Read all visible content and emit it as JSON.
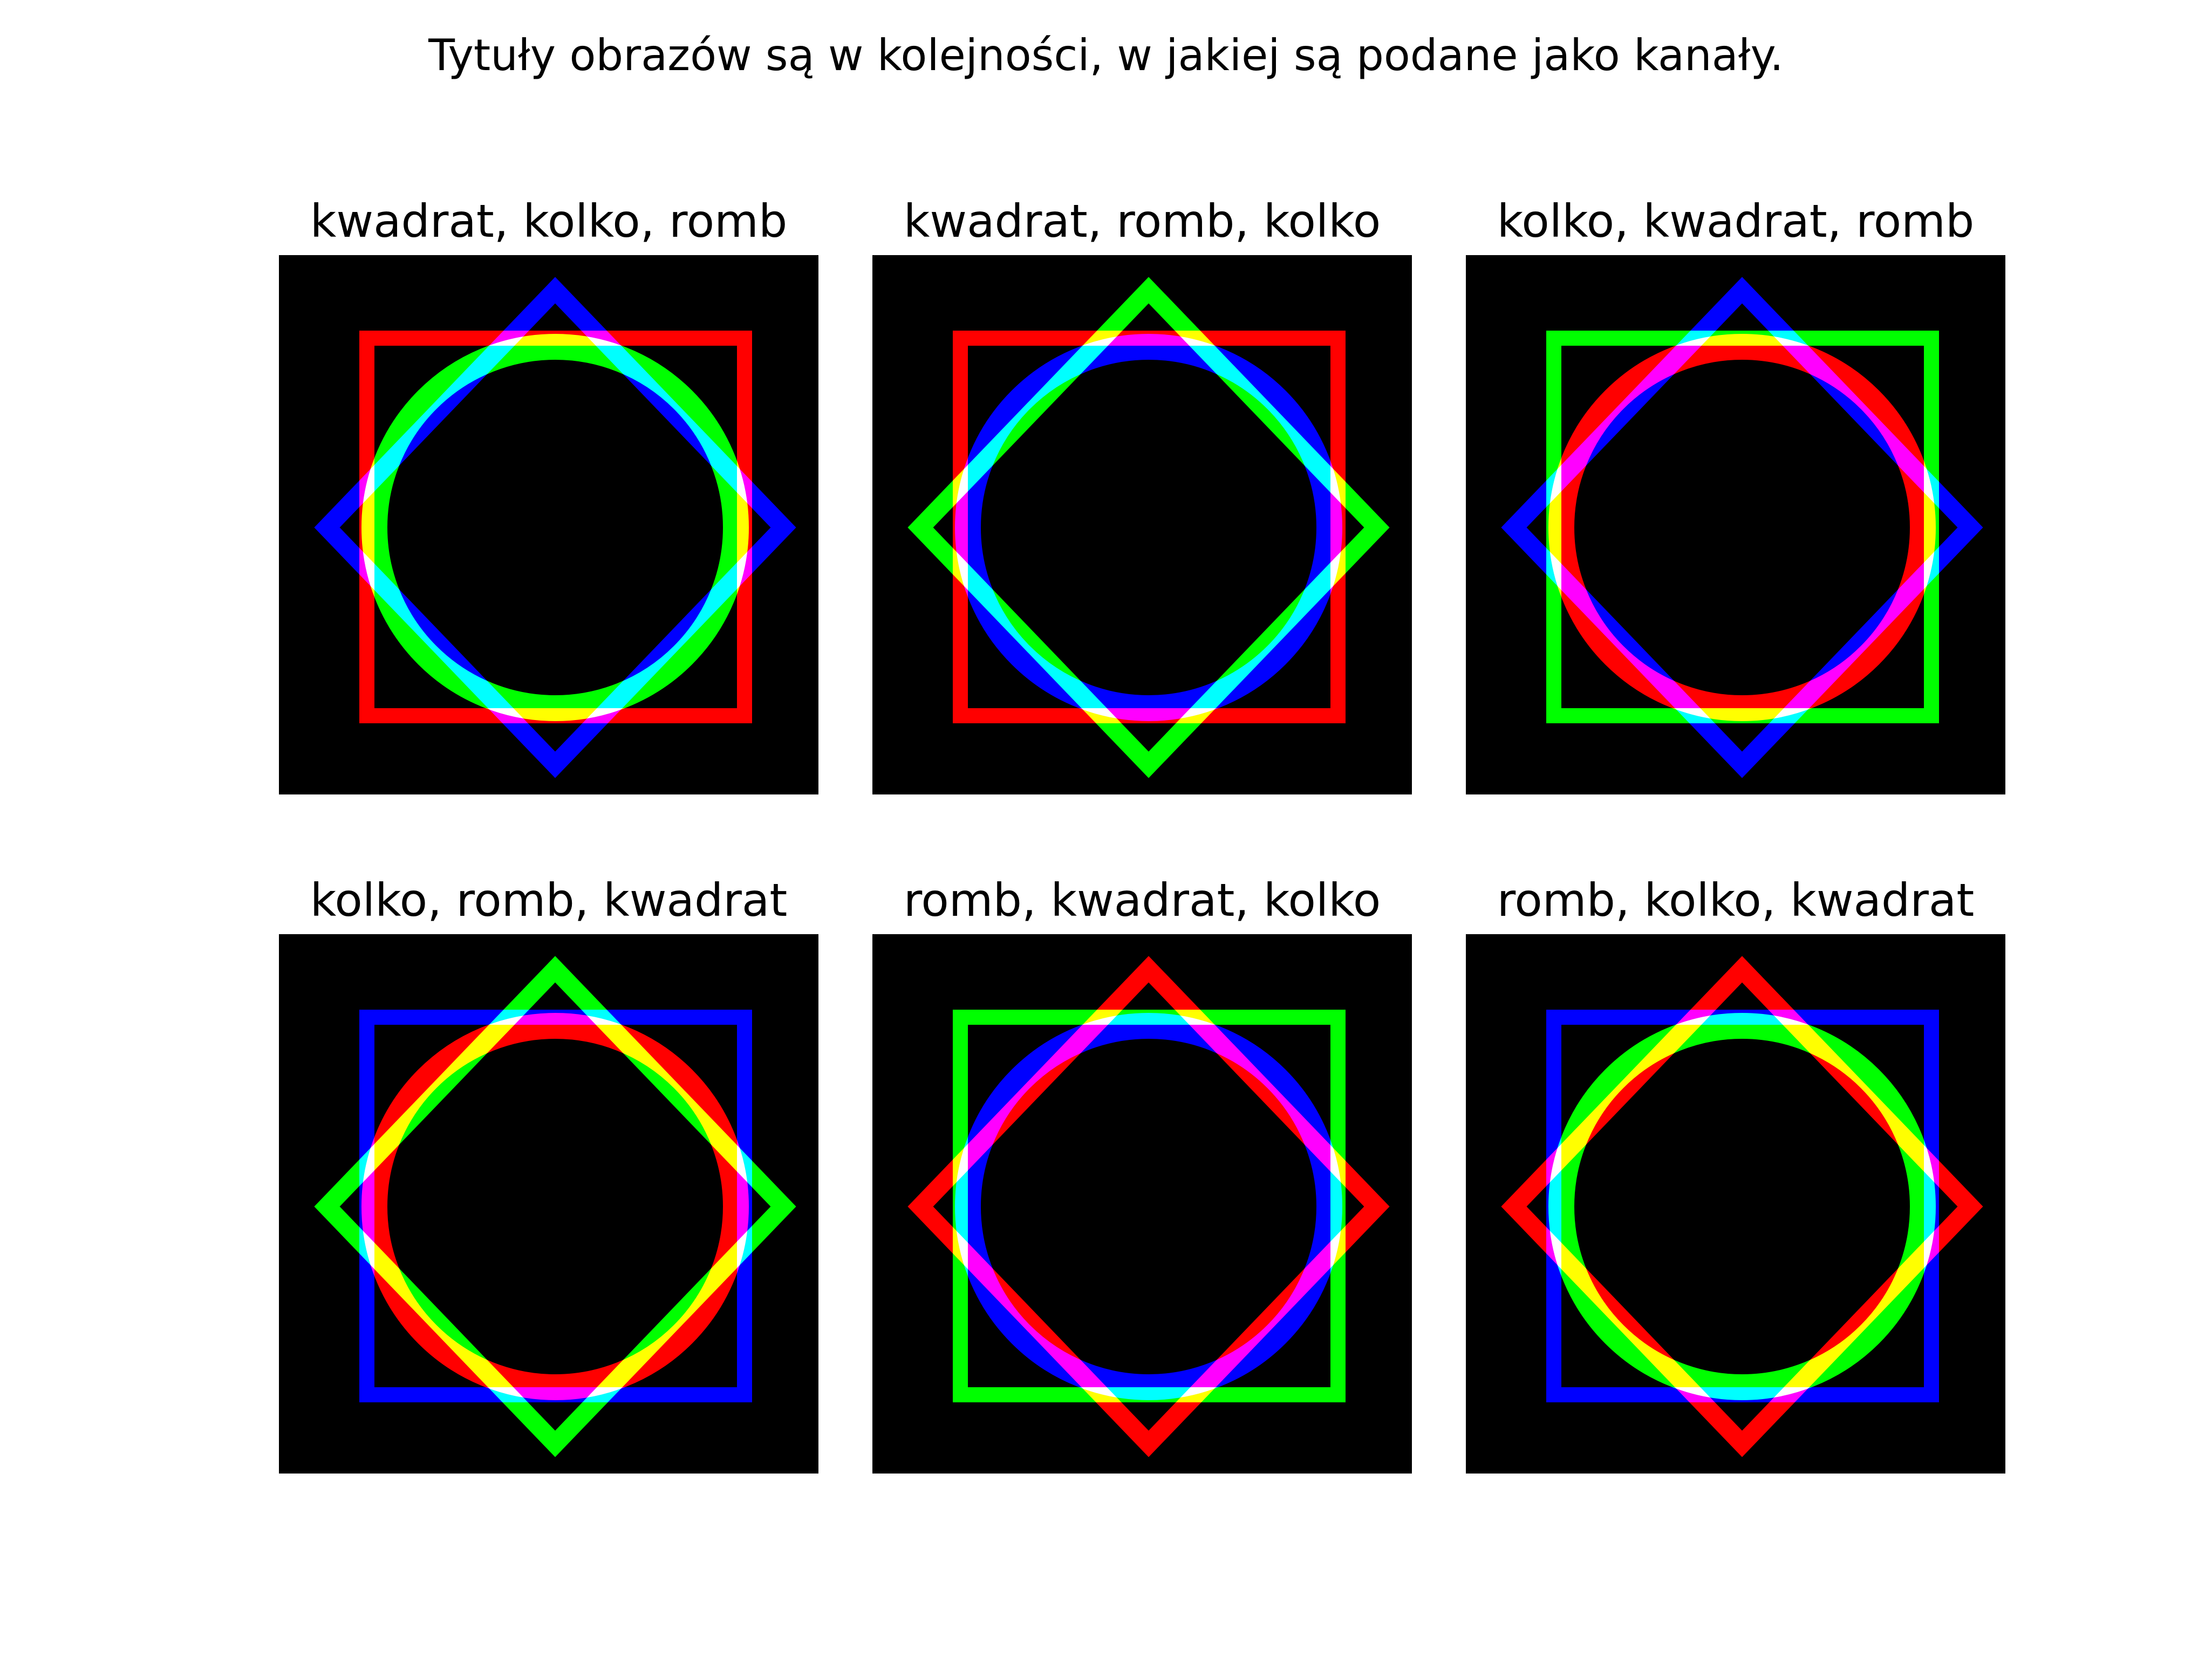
{
  "figure_title": "Tytuły obrazów są w kolejności, w jakiej są podane jako kanały.",
  "channel_colors": [
    "#ff0000",
    "#00ff00",
    "#0000ff"
  ],
  "background_color": "#000000",
  "panels": [
    {
      "title": "kwadrat, kolko, romb",
      "channels": [
        "kwadrat",
        "kolko",
        "romb"
      ]
    },
    {
      "title": "kwadrat, romb, kolko",
      "channels": [
        "kwadrat",
        "romb",
        "kolko"
      ]
    },
    {
      "title": "kolko, kwadrat, romb",
      "channels": [
        "kolko",
        "kwadrat",
        "romb"
      ]
    },
    {
      "title": "kolko, romb, kwadrat",
      "channels": [
        "kolko",
        "romb",
        "kwadrat"
      ]
    },
    {
      "title": "romb, kwadrat, kolko",
      "channels": [
        "romb",
        "kwadrat",
        "kolko"
      ]
    },
    {
      "title": "romb, kolko, kwadrat",
      "channels": [
        "romb",
        "kolko",
        "kwadrat"
      ]
    }
  ]
}
